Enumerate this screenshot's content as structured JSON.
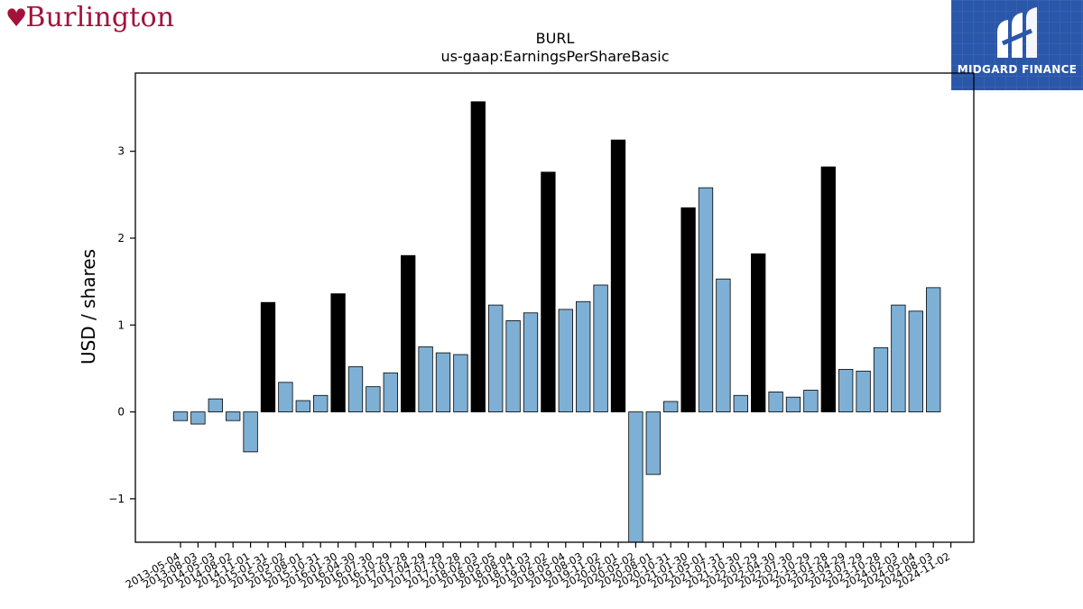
{
  "branding": {
    "company_logo": "Burlington",
    "partner_logo": "MIDGARD FINANCE"
  },
  "chart_data": {
    "type": "bar",
    "title": "BURL",
    "subtitle": "us-gaap:EarningsPerShareBasic",
    "xlabel": "",
    "ylabel": "USD / shares",
    "ylim": [
      -1.5,
      3.9
    ],
    "yticks": [
      -1,
      0,
      1,
      2,
      3
    ],
    "grid": false,
    "legend": "none",
    "colors": {
      "quarterly": "#7eb0d5",
      "annual": "#000000",
      "edge": "#000000"
    },
    "categories": [
      "2013-05-04",
      "2013-08-03",
      "2014-05-03",
      "2014-08-02",
      "2014-11-01",
      "2015-01-31",
      "2015-05-02",
      "2015-08-01",
      "2015-10-31",
      "2016-01-30",
      "2016-04-30",
      "2016-07-30",
      "2016-10-29",
      "2017-01-28",
      "2017-04-29",
      "2017-07-29",
      "2017-10-28",
      "2018-02-03",
      "2018-05-05",
      "2018-08-04",
      "2018-11-03",
      "2019-02-02",
      "2019-05-04",
      "2019-08-03",
      "2019-11-02",
      "2020-02-01",
      "2020-05-02",
      "2020-08-01",
      "2020-10-31",
      "2021-01-30",
      "2021-05-01",
      "2021-07-31",
      "2021-10-30",
      "2022-01-29",
      "2022-04-30",
      "2022-07-30",
      "2022-10-29",
      "2023-01-28",
      "2023-04-29",
      "2023-07-29",
      "2023-10-28",
      "2024-02-03",
      "2024-05-04",
      "2024-08-03",
      "2024-11-02"
    ],
    "values": [
      -0.1,
      -0.14,
      0.15,
      -0.1,
      -0.46,
      1.26,
      0.34,
      0.13,
      0.19,
      1.36,
      0.52,
      0.29,
      0.45,
      1.8,
      0.75,
      0.68,
      0.66,
      3.57,
      1.23,
      1.05,
      1.14,
      2.76,
      1.18,
      1.27,
      1.46,
      3.13,
      -1.55,
      -0.72,
      0.12,
      2.35,
      2.58,
      1.53,
      0.19,
      1.82,
      0.23,
      0.17,
      0.25,
      2.82,
      0.49,
      0.47,
      0.74,
      1.23,
      1.16,
      1.43,
      0
    ],
    "annual_flags": [
      false,
      false,
      false,
      false,
      false,
      true,
      false,
      false,
      false,
      true,
      false,
      false,
      false,
      true,
      false,
      false,
      false,
      true,
      false,
      false,
      false,
      true,
      false,
      false,
      false,
      true,
      false,
      false,
      false,
      true,
      false,
      false,
      false,
      true,
      false,
      false,
      false,
      true,
      false,
      false,
      false,
      false,
      false,
      false,
      false
    ]
  }
}
